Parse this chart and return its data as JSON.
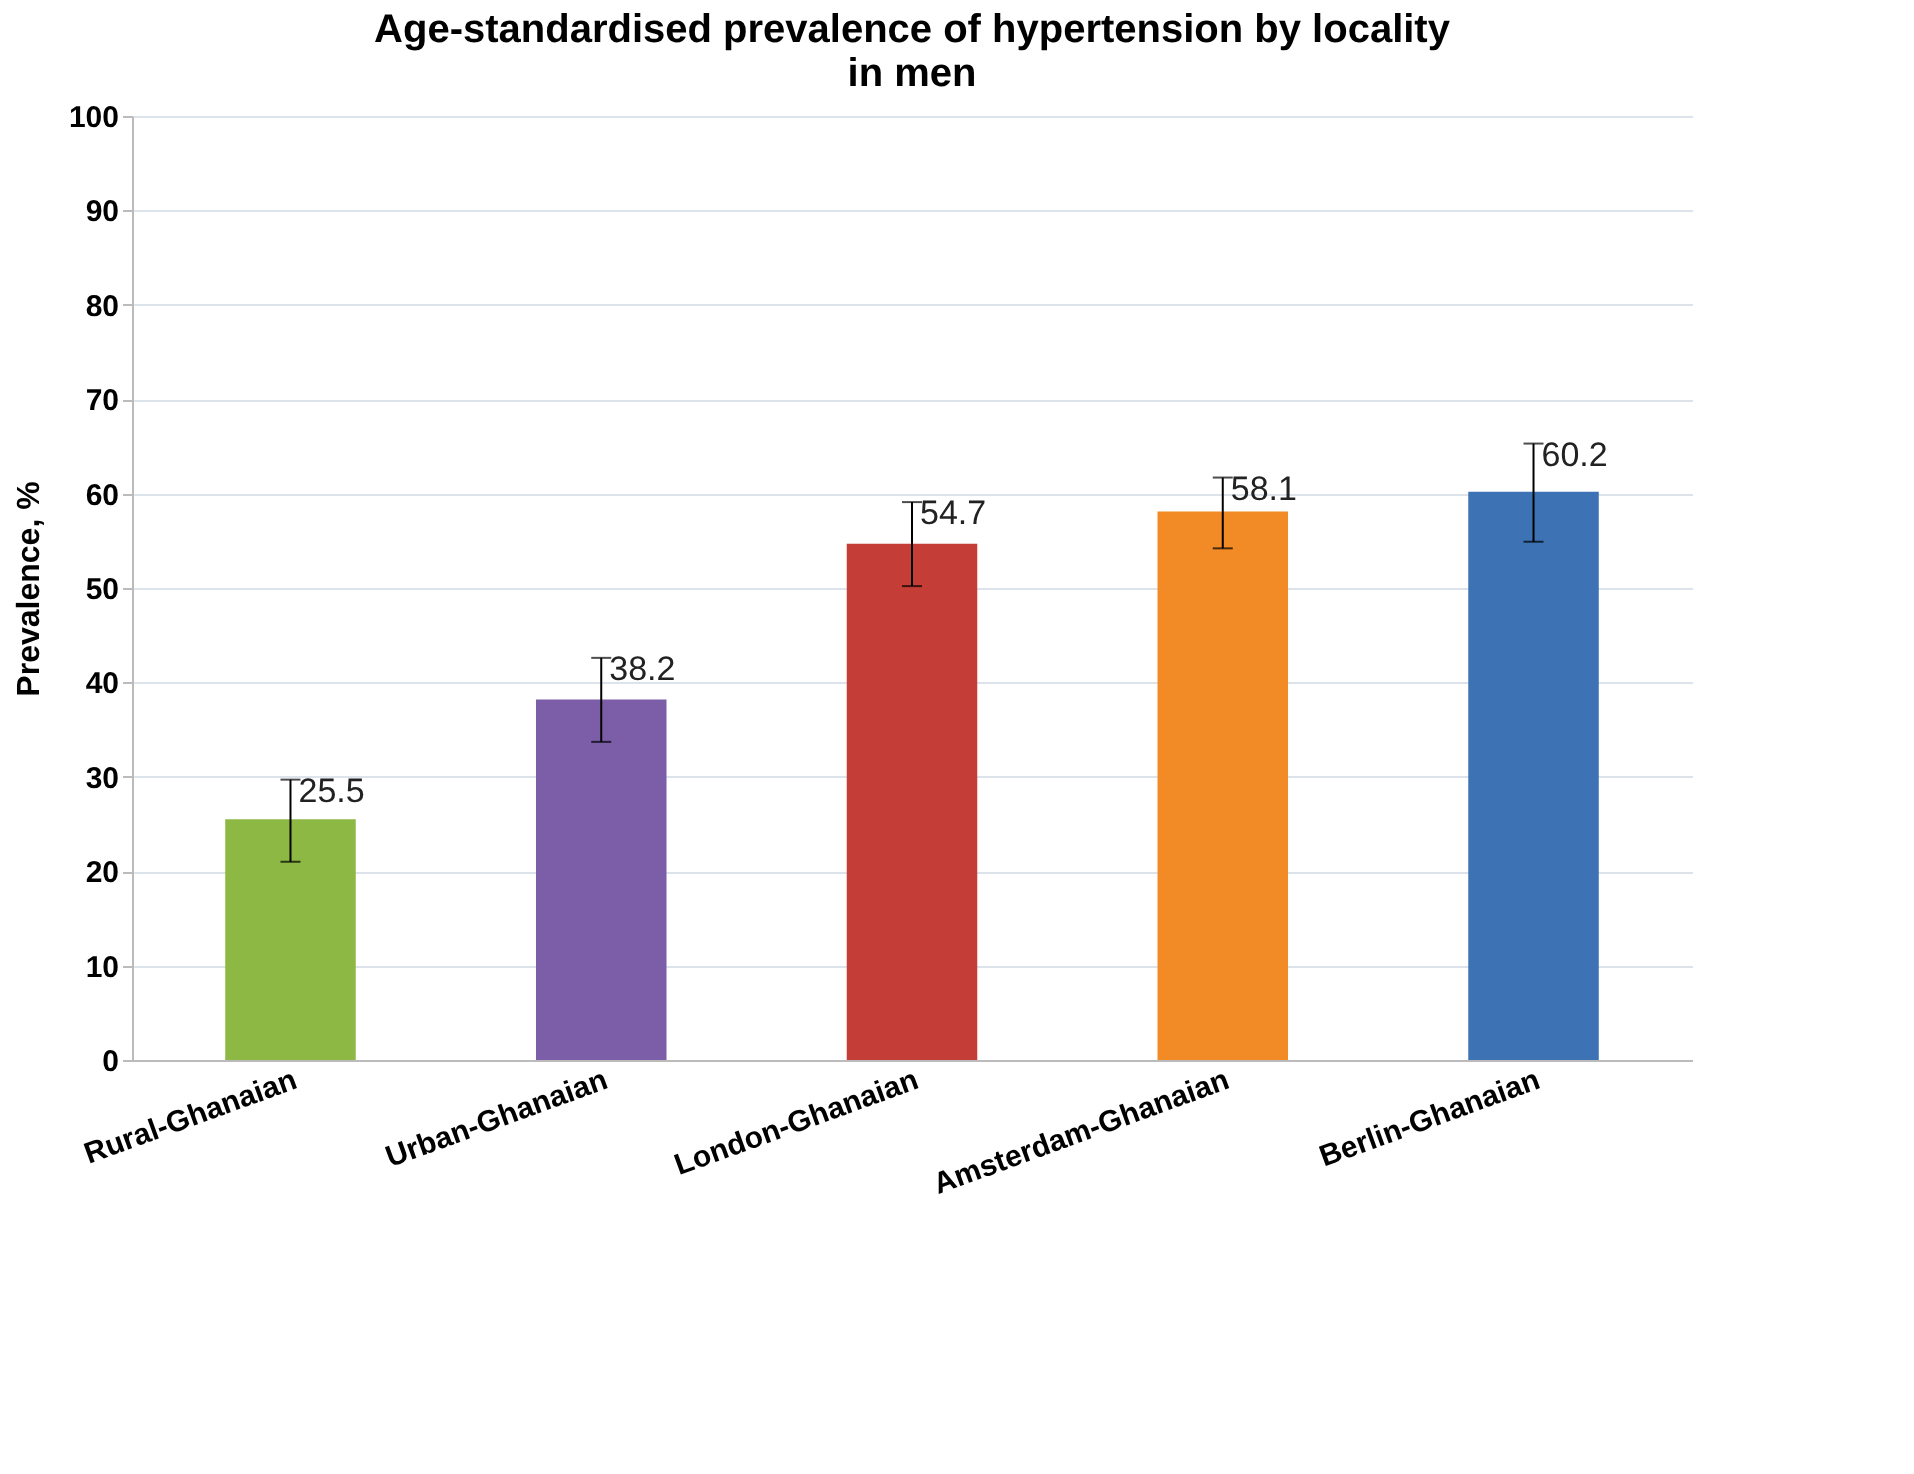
{
  "chart_data": {
    "type": "bar",
    "title": "Age-standardised prevalence of hypertension by locality\nin men",
    "ylabel": "Prevalence, %",
    "categories": [
      "Rural-Ghanaian",
      "Urban-Ghanaian",
      "London-Ghanaian",
      "Amsterdam-Ghanaian",
      "Berlin-Ghanaian"
    ],
    "values": [
      25.5,
      38.2,
      54.7,
      58.1,
      60.2
    ],
    "colors": [
      "#8db843",
      "#7b5ea7",
      "#c43d36",
      "#f28a26",
      "#3d72b4"
    ],
    "errors": [
      [
        21.0,
        29.7
      ],
      [
        33.7,
        42.6
      ],
      [
        50.2,
        59.1
      ],
      [
        54.2,
        61.7
      ],
      [
        54.9,
        65.3
      ]
    ],
    "ylim": [
      0,
      100
    ],
    "yticks": [
      0,
      10,
      20,
      30,
      40,
      50,
      60,
      70,
      80,
      90,
      100
    ],
    "grid": "y",
    "data_labels": true
  }
}
